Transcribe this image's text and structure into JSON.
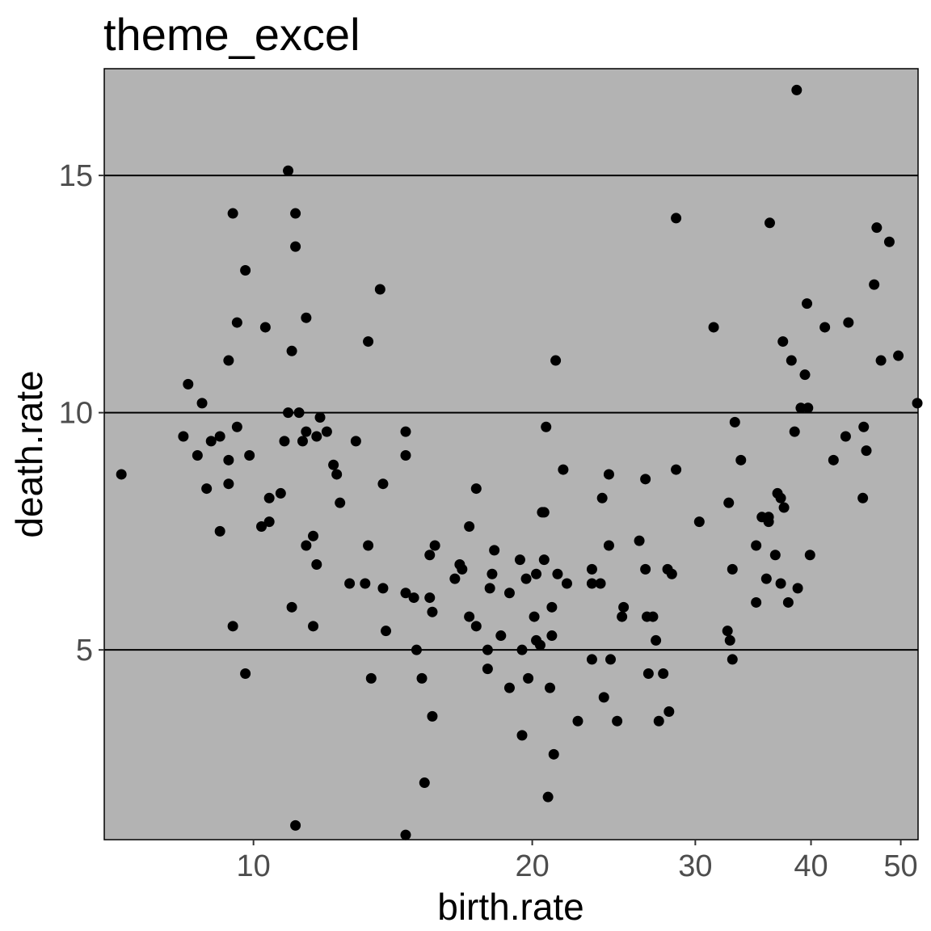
{
  "chart_data": {
    "type": "scatter",
    "title": "theme_excel",
    "xlabel": "birth.rate",
    "ylabel": "death.rate",
    "x_scale": "log10",
    "xlim": [
      6.9,
      52.2
    ],
    "ylim": [
      1.0,
      17.25
    ],
    "xticks": [
      10,
      20,
      30,
      40,
      50
    ],
    "xtick_labels": [
      "10",
      "20",
      "30",
      "40",
      "50"
    ],
    "yticks": [
      5,
      10,
      15
    ],
    "ytick_labels": [
      "5",
      "10",
      "15"
    ],
    "grid": "horizontal major only",
    "panel_color": "#b3b3b3",
    "point_color": "#000000",
    "points": [
      [
        7.2,
        8.7
      ],
      [
        8.4,
        9.5
      ],
      [
        8.5,
        10.6
      ],
      [
        8.7,
        9.1
      ],
      [
        8.8,
        10.2
      ],
      [
        8.9,
        8.4
      ],
      [
        9.0,
        9.4
      ],
      [
        9.2,
        7.5
      ],
      [
        9.2,
        9.5
      ],
      [
        9.4,
        11.1
      ],
      [
        9.4,
        8.5
      ],
      [
        9.4,
        9.0
      ],
      [
        9.5,
        14.2
      ],
      [
        9.5,
        5.5
      ],
      [
        9.6,
        11.9
      ],
      [
        9.6,
        9.7
      ],
      [
        9.8,
        13.0
      ],
      [
        9.8,
        4.5
      ],
      [
        9.9,
        9.1
      ],
      [
        10.2,
        7.6
      ],
      [
        10.3,
        11.8
      ],
      [
        10.4,
        8.2
      ],
      [
        10.4,
        7.7
      ],
      [
        10.7,
        8.3
      ],
      [
        10.8,
        9.4
      ],
      [
        10.9,
        15.1
      ],
      [
        10.9,
        10.0
      ],
      [
        11.0,
        11.3
      ],
      [
        11.0,
        5.9
      ],
      [
        11.1,
        14.2
      ],
      [
        11.1,
        13.5
      ],
      [
        11.1,
        1.3
      ],
      [
        11.2,
        10.0
      ],
      [
        11.3,
        9.4
      ],
      [
        11.4,
        9.6
      ],
      [
        11.4,
        7.2
      ],
      [
        11.4,
        12.0
      ],
      [
        11.6,
        7.4
      ],
      [
        11.6,
        5.5
      ],
      [
        11.7,
        9.5
      ],
      [
        11.7,
        6.8
      ],
      [
        11.8,
        9.9
      ],
      [
        12.0,
        9.6
      ],
      [
        12.2,
        8.9
      ],
      [
        12.3,
        8.7
      ],
      [
        12.4,
        8.1
      ],
      [
        12.7,
        6.4
      ],
      [
        12.9,
        9.4
      ],
      [
        13.2,
        6.4
      ],
      [
        13.3,
        11.5
      ],
      [
        13.3,
        7.2
      ],
      [
        13.4,
        4.4
      ],
      [
        13.7,
        12.6
      ],
      [
        13.8,
        8.5
      ],
      [
        13.8,
        6.3
      ],
      [
        13.9,
        5.4
      ],
      [
        14.6,
        9.6
      ],
      [
        14.6,
        9.1
      ],
      [
        14.6,
        6.2
      ],
      [
        14.6,
        1.1
      ],
      [
        14.9,
        6.1
      ],
      [
        15.0,
        5.0
      ],
      [
        15.2,
        4.4
      ],
      [
        15.3,
        2.2
      ],
      [
        15.5,
        6.1
      ],
      [
        15.5,
        7.0
      ],
      [
        15.6,
        5.8
      ],
      [
        15.6,
        3.6
      ],
      [
        15.7,
        7.2
      ],
      [
        16.5,
        6.5
      ],
      [
        16.7,
        6.8
      ],
      [
        16.8,
        6.7
      ],
      [
        17.1,
        7.6
      ],
      [
        17.1,
        5.7
      ],
      [
        17.4,
        5.5
      ],
      [
        17.4,
        8.4
      ],
      [
        17.9,
        5.0
      ],
      [
        17.9,
        4.6
      ],
      [
        18.0,
        6.3
      ],
      [
        18.1,
        6.6
      ],
      [
        18.2,
        7.1
      ],
      [
        18.5,
        5.3
      ],
      [
        18.9,
        6.2
      ],
      [
        18.9,
        4.2
      ],
      [
        19.4,
        6.9
      ],
      [
        19.5,
        5.0
      ],
      [
        19.5,
        3.2
      ],
      [
        19.7,
        6.5
      ],
      [
        19.8,
        4.4
      ],
      [
        20.1,
        5.7
      ],
      [
        20.2,
        6.6
      ],
      [
        20.2,
        5.2
      ],
      [
        20.4,
        5.1
      ],
      [
        20.5,
        7.9
      ],
      [
        20.6,
        6.9
      ],
      [
        20.6,
        7.9
      ],
      [
        20.7,
        9.7
      ],
      [
        20.8,
        1.9
      ],
      [
        20.9,
        4.2
      ],
      [
        21.0,
        5.9
      ],
      [
        21.0,
        5.3
      ],
      [
        21.1,
        2.8
      ],
      [
        21.2,
        11.1
      ],
      [
        21.3,
        6.6
      ],
      [
        21.6,
        8.8
      ],
      [
        21.8,
        6.4
      ],
      [
        22.4,
        3.5
      ],
      [
        23.2,
        6.7
      ],
      [
        23.2,
        4.8
      ],
      [
        23.2,
        6.4
      ],
      [
        23.7,
        6.4
      ],
      [
        23.8,
        8.2
      ],
      [
        23.9,
        4.0
      ],
      [
        24.2,
        7.2
      ],
      [
        24.2,
        8.7
      ],
      [
        24.3,
        4.8
      ],
      [
        24.7,
        3.5
      ],
      [
        25.0,
        5.7
      ],
      [
        25.1,
        5.9
      ],
      [
        26.1,
        7.3
      ],
      [
        26.5,
        6.7
      ],
      [
        26.5,
        8.6
      ],
      [
        26.6,
        5.7
      ],
      [
        26.7,
        4.5
      ],
      [
        27.0,
        5.7
      ],
      [
        27.2,
        5.2
      ],
      [
        27.4,
        3.5
      ],
      [
        27.7,
        4.5
      ],
      [
        28.0,
        6.7
      ],
      [
        28.1,
        3.7
      ],
      [
        28.3,
        6.6
      ],
      [
        28.6,
        14.1
      ],
      [
        28.6,
        8.8
      ],
      [
        30.3,
        7.7
      ],
      [
        31.4,
        11.8
      ],
      [
        32.5,
        5.4
      ],
      [
        32.6,
        8.1
      ],
      [
        32.7,
        5.2
      ],
      [
        32.9,
        4.8
      ],
      [
        32.9,
        6.7
      ],
      [
        33.1,
        9.8
      ],
      [
        33.6,
        9.0
      ],
      [
        34.9,
        6.0
      ],
      [
        34.9,
        7.2
      ],
      [
        35.4,
        7.8
      ],
      [
        35.8,
        6.5
      ],
      [
        36.0,
        7.8
      ],
      [
        36.0,
        7.7
      ],
      [
        36.1,
        14.0
      ],
      [
        36.6,
        7.0
      ],
      [
        36.8,
        8.3
      ],
      [
        37.1,
        6.4
      ],
      [
        37.1,
        8.2
      ],
      [
        37.3,
        11.5
      ],
      [
        37.4,
        8.0
      ],
      [
        37.8,
        6.0
      ],
      [
        38.1,
        11.1
      ],
      [
        38.4,
        9.6
      ],
      [
        38.6,
        16.8
      ],
      [
        38.7,
        6.3
      ],
      [
        39.0,
        10.1
      ],
      [
        39.4,
        10.8
      ],
      [
        39.6,
        12.3
      ],
      [
        39.7,
        10.1
      ],
      [
        39.9,
        7.0
      ],
      [
        41.4,
        11.8
      ],
      [
        42.3,
        9.0
      ],
      [
        43.6,
        9.5
      ],
      [
        43.9,
        11.9
      ],
      [
        45.5,
        8.2
      ],
      [
        45.6,
        9.7
      ],
      [
        45.9,
        9.2
      ],
      [
        46.8,
        12.7
      ],
      [
        47.1,
        13.9
      ],
      [
        47.6,
        11.1
      ],
      [
        48.6,
        13.6
      ],
      [
        49.7,
        11.2
      ],
      [
        52.1,
        10.2
      ]
    ]
  }
}
